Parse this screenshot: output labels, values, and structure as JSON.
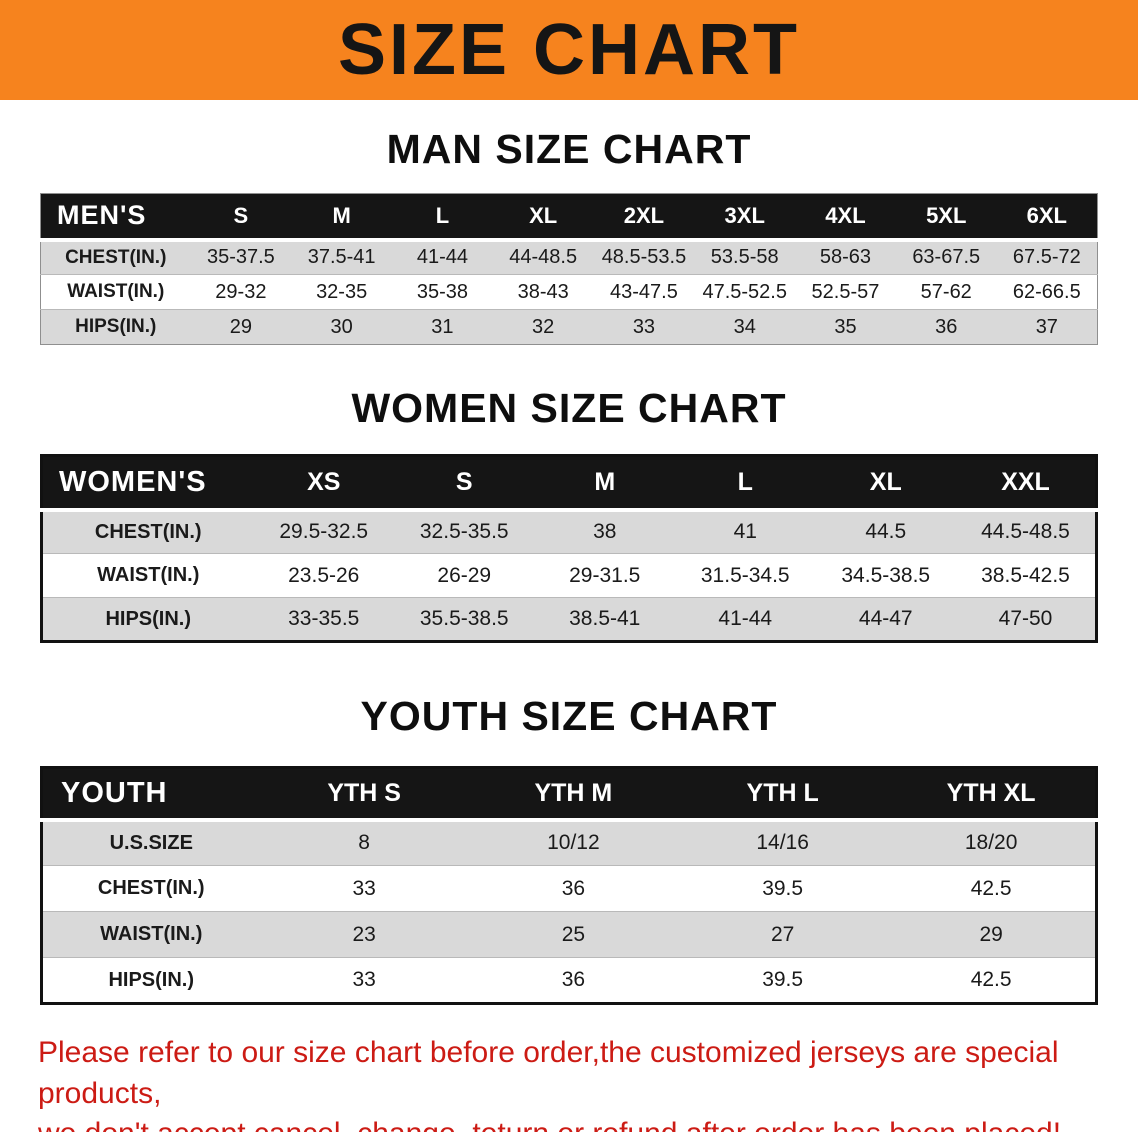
{
  "banner": {
    "title": "SIZE CHART"
  },
  "colors": {
    "banner_bg": "#F6831E",
    "header_bg": "#151515",
    "row_alt": "#d9d9d9",
    "footer_red": "#cc1b14"
  },
  "sections": [
    {
      "title": "MAN SIZE CHART",
      "label": "MEN'S",
      "columns": [
        "S",
        "M",
        "L",
        "XL",
        "2XL",
        "3XL",
        "4XL",
        "5XL",
        "6XL"
      ],
      "rows": [
        {
          "label": "CHEST(IN.)",
          "values": [
            "35-37.5",
            "37.5-41",
            "41-44",
            "44-48.5",
            "48.5-53.5",
            "53.5-58",
            "58-63",
            "63-67.5",
            "67.5-72"
          ]
        },
        {
          "label": "WAIST(IN.)",
          "values": [
            "29-32",
            "32-35",
            "35-38",
            "38-43",
            "43-47.5",
            "47.5-52.5",
            "52.5-57",
            "57-62",
            "62-66.5"
          ]
        },
        {
          "label": "HIPS(IN.)",
          "values": [
            "29",
            "30",
            "31",
            "32",
            "33",
            "34",
            "35",
            "36",
            "37"
          ]
        }
      ]
    },
    {
      "title": "WOMEN SIZE CHART",
      "label": "WOMEN'S",
      "columns": [
        "XS",
        "S",
        "M",
        "L",
        "XL",
        "XXL"
      ],
      "rows": [
        {
          "label": "CHEST(IN.)",
          "values": [
            "29.5-32.5",
            "32.5-35.5",
            "38",
            "41",
            "44.5",
            "44.5-48.5"
          ]
        },
        {
          "label": "WAIST(IN.)",
          "values": [
            "23.5-26",
            "26-29",
            "29-31.5",
            "31.5-34.5",
            "34.5-38.5",
            "38.5-42.5"
          ]
        },
        {
          "label": "HIPS(IN.)",
          "values": [
            "33-35.5",
            "35.5-38.5",
            "38.5-41",
            "41-44",
            "44-47",
            "47-50"
          ]
        }
      ]
    },
    {
      "title": "YOUTH SIZE CHART",
      "label": "YOUTH",
      "columns": [
        "YTH S",
        "YTH M",
        "YTH L",
        "YTH XL"
      ],
      "rows": [
        {
          "label": "U.S.SIZE",
          "values": [
            "8",
            "10/12",
            "14/16",
            "18/20"
          ]
        },
        {
          "label": "CHEST(IN.)",
          "values": [
            "33",
            "36",
            "39.5",
            "42.5"
          ]
        },
        {
          "label": "WAIST(IN.)",
          "values": [
            "23",
            "25",
            "27",
            "29"
          ]
        },
        {
          "label": "HIPS(IN.)",
          "values": [
            "33",
            "36",
            "39.5",
            "42.5"
          ]
        }
      ]
    }
  ],
  "footer": {
    "lines": [
      "Please refer to our size chart before order,the customized jerseys are special products,",
      "we don't accept cancel, change, teturn or refund after order has been placed!"
    ]
  }
}
